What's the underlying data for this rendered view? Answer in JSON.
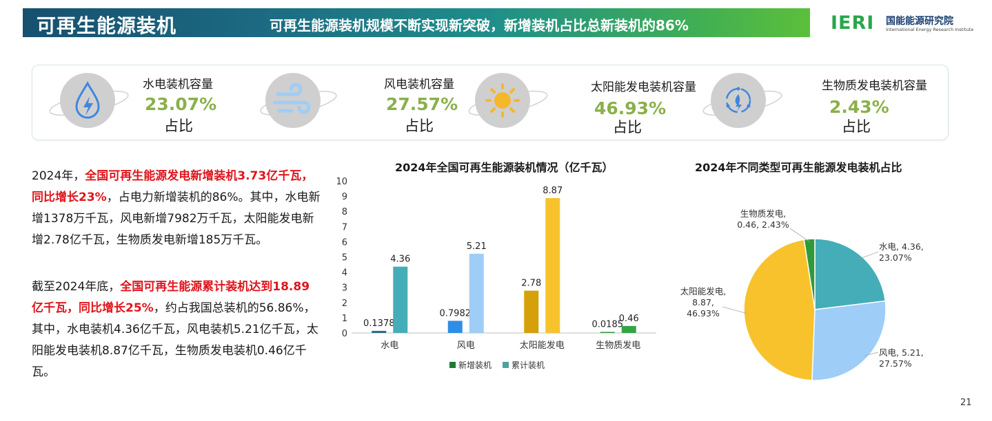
{
  "header": {
    "title": "可再生能源装机",
    "subtitle": "可再生能源装机规模不断实现新突破，新增装机占比总新装机的86%"
  },
  "logo": {
    "mark": "IERI",
    "name_cn": "国能能源研究院",
    "name_en": "International Energy Research Institute"
  },
  "stats": [
    {
      "label": "水电装机容量",
      "value": "23.07%",
      "unit": "占比",
      "icon": "water-drop-lightning-icon"
    },
    {
      "label": "风电装机容量",
      "value": "27.57%",
      "unit": "占比",
      "icon": "wind-icon"
    },
    {
      "label": "太阳能发电装机容量",
      "value": "46.93%",
      "unit": "占比",
      "icon": "sun-icon"
    },
    {
      "label": "生物质发电装机容量",
      "value": "2.43%",
      "unit": "占比",
      "icon": "biomass-cycle-icon"
    }
  ],
  "paragraph1": {
    "p1": "2024年，",
    "hl1": "全国可再生能源发电新增装机3.73亿千瓦，同比增长23%",
    "p2": "，占电力新增装机的86%。其中，水电新增1378万千瓦，风电新增7982万千瓦，太阳能发电新增2.78亿千瓦，生物质发电新增185万千瓦。"
  },
  "paragraph2": {
    "p1": "截至2024年底，",
    "hl1": "全国可再生能源累计装机达到18.89亿千瓦，同比增长25%",
    "p2": "，约占我国总装机的56.86%，其中，水电装机4.36亿千瓦，风电装机5.21亿千瓦，太阳能发电装机8.87亿千瓦，生物质发电装机0.46亿千瓦。"
  },
  "page_number": "21",
  "chart_data": [
    {
      "type": "bar",
      "title": "2024年全国可再生能源装机情况（亿千瓦）",
      "categories": [
        "水电",
        "风电",
        "太阳能发电",
        "生物质发电"
      ],
      "series": [
        {
          "name": "新增装机",
          "values": [
            0.1378,
            0.7982,
            2.78,
            0.0185
          ],
          "colors": [
            "#2e6b8e",
            "#2f8de6",
            "#d6a00a",
            "#2f9a3a"
          ]
        },
        {
          "name": "累计装机",
          "values": [
            4.36,
            5.21,
            8.87,
            0.46
          ],
          "colors": [
            "#44adb8",
            "#9ecdf7",
            "#f7c22c",
            "#34a543"
          ]
        }
      ],
      "data_labels": [
        [
          "0.1378",
          "0.7982",
          "2.78",
          "0.0185"
        ],
        [
          "4.36",
          "5.21",
          "8.87",
          "0.46"
        ]
      ],
      "legend_colors": [
        "#1e7a34",
        "#4aa3a2"
      ],
      "yticks": [
        "0",
        "1",
        "2",
        "3",
        "4",
        "5",
        "6",
        "7",
        "8",
        "9",
        "10"
      ],
      "ylim": [
        0,
        10
      ],
      "legend_position": "bottom",
      "grid": false
    },
    {
      "type": "pie",
      "title": "2024年不同类型可再生能源发电装机占比",
      "slices": [
        {
          "name": "水电",
          "value": 4.36,
          "percent": "23.07%",
          "color": "#44adb8",
          "label_lines": [
            "水电, 4.36,",
            "23.07%"
          ]
        },
        {
          "name": "风电",
          "value": 5.21,
          "percent": "27.57%",
          "color": "#9ecdf7",
          "label_lines": [
            "风电, 5.21,",
            "27.57%"
          ]
        },
        {
          "name": "太阳能发电",
          "value": 8.87,
          "percent": "46.93%",
          "color": "#f7c22c",
          "label_lines": [
            "太阳能发电,",
            "8.87,",
            "46.93%"
          ]
        },
        {
          "name": "生物质发电",
          "value": 0.46,
          "percent": "2.43%",
          "color": "#2f9a3a",
          "label_lines": [
            "生物质发电,",
            "0.46, 2.43%"
          ]
        }
      ],
      "start_angle_deg": 0,
      "direction": "clockwise",
      "legend_position": "none"
    }
  ]
}
